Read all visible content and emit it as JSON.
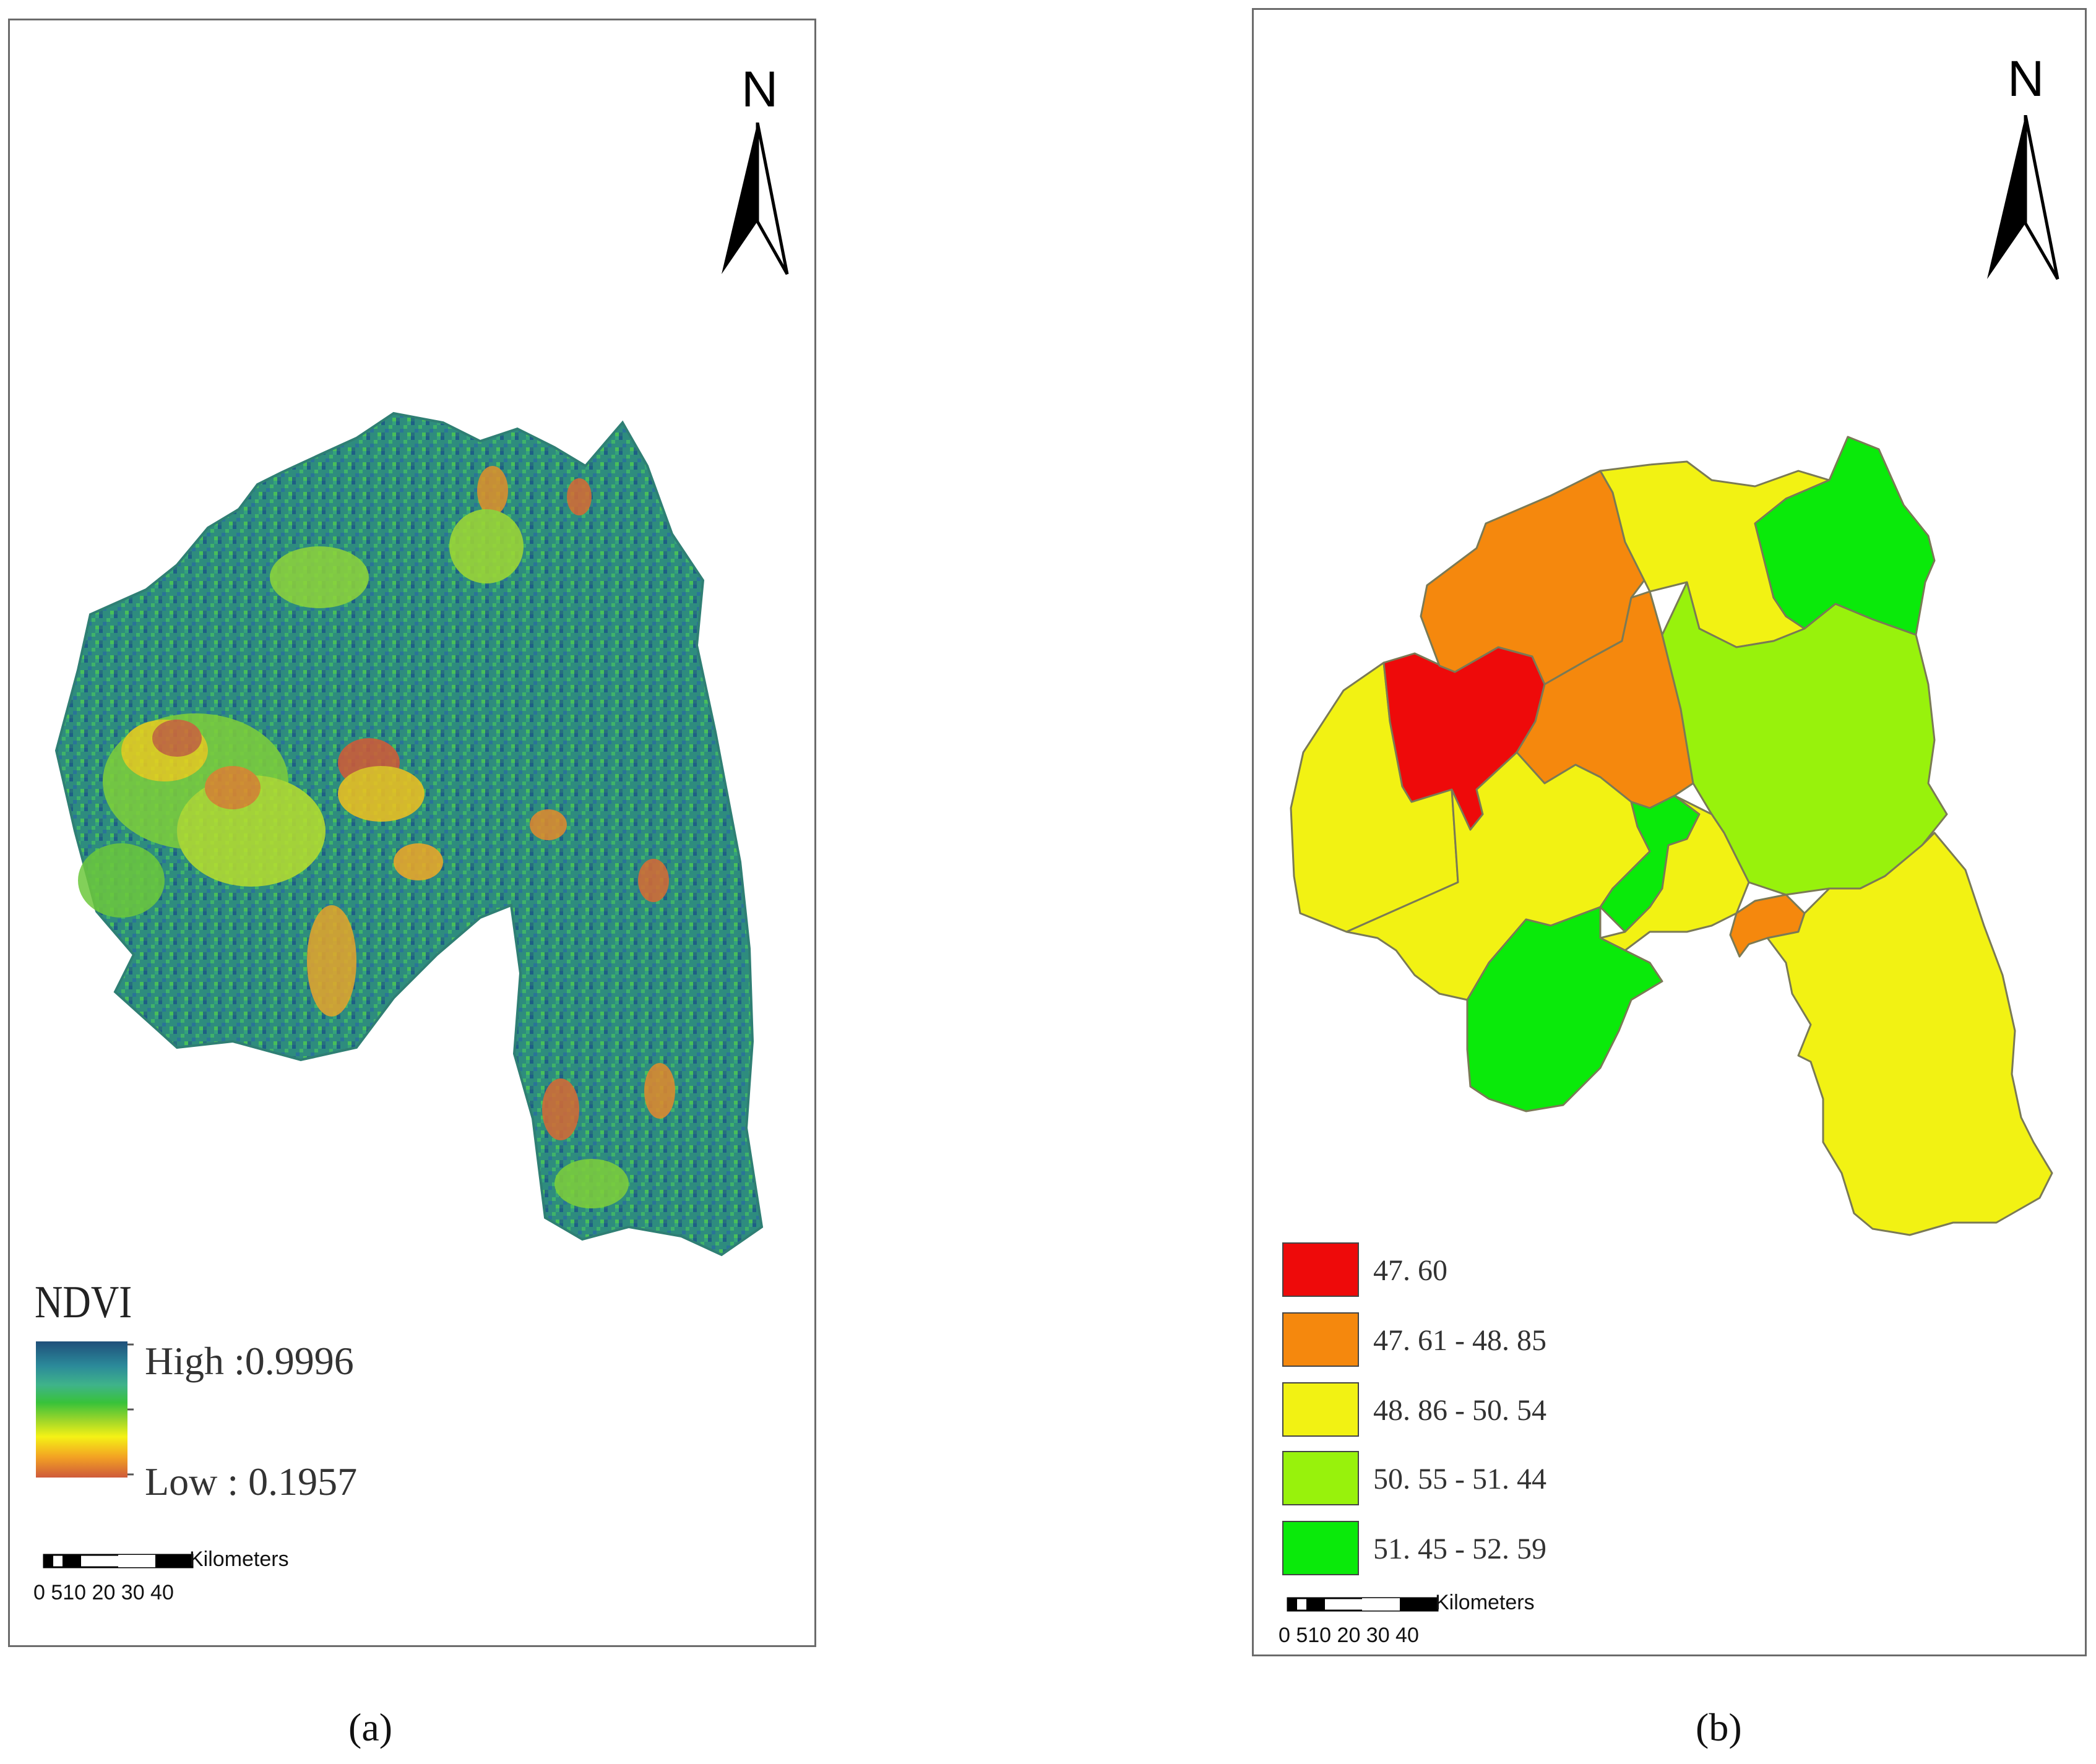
{
  "panel_a": {
    "caption": "(a)",
    "north_label": "N",
    "legend": {
      "title": "NDVI",
      "high_label": "High :0.9996",
      "low_label": "Low : 0.1957",
      "gradient_colors": [
        "#1f4f7a",
        "#2b8a9a",
        "#3fb38a",
        "#38c23a",
        "#9ed62a",
        "#f5f215",
        "#f3a223",
        "#cf5a3a"
      ]
    },
    "scale_bar": {
      "unit": "Kilometers",
      "ticks": [
        "0",
        "5",
        "10",
        "20",
        "30",
        "40"
      ],
      "tick_text": "0 510 20 30 40"
    }
  },
  "panel_b": {
    "caption": "(b)",
    "north_label": "N",
    "legend": [
      {
        "label": "47. 60",
        "color": "#ee0a0a"
      },
      {
        "label": "47. 61 - 48. 85",
        "color": "#f5880d"
      },
      {
        "label": "48. 86 - 50. 54",
        "color": "#f2f213"
      },
      {
        "label": "50. 55 - 51. 44",
        "color": "#98f20c"
      },
      {
        "label": "51. 45 - 52. 59",
        "color": "#0aea0a"
      }
    ],
    "scale_bar": {
      "unit": "Kilometers",
      "ticks": [
        "0",
        "5",
        "10",
        "20",
        "30",
        "40"
      ],
      "tick_text": "0 510 20 30 40"
    }
  }
}
